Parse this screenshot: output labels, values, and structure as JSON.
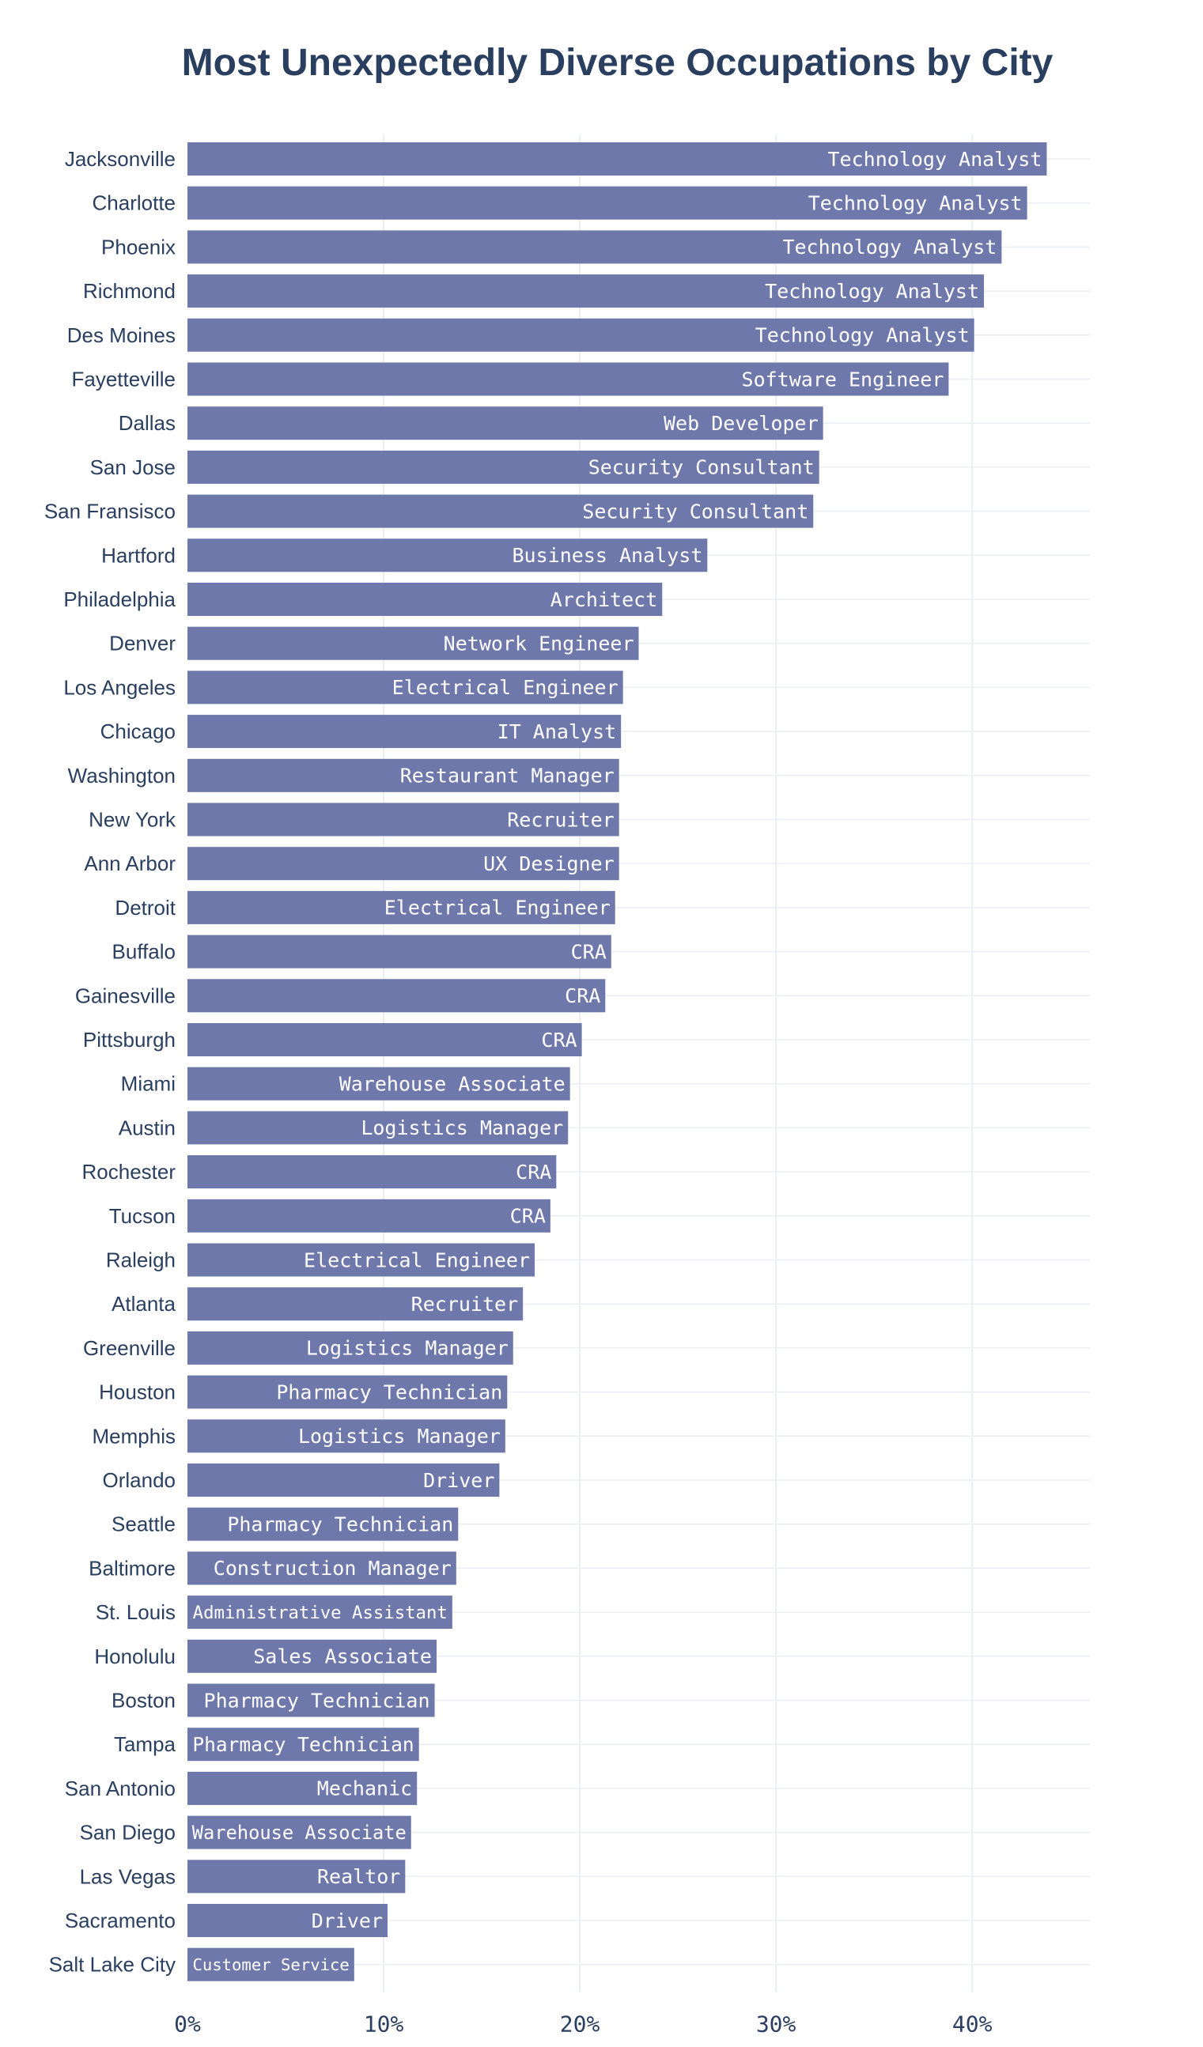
{
  "chart_data": {
    "type": "bar",
    "orientation": "horizontal",
    "title": "Most Unexpectedly Diverse Occupations by City",
    "xlabel": "",
    "ylabel": "",
    "xlim": [
      0,
      46
    ],
    "x_ticks": [
      0,
      10,
      20,
      30,
      40
    ],
    "x_tick_labels": [
      "0%",
      "10%",
      "20%",
      "30%",
      "40%"
    ],
    "grid": true,
    "bar_color": "#6e78aa",
    "categories": [
      "Jacksonville",
      "Charlotte",
      "Phoenix",
      "Richmond",
      "Des Moines",
      "Fayetteville",
      "Dallas",
      "San Jose",
      "San Fransisco",
      "Hartford",
      "Philadelphia",
      "Denver",
      "Los Angeles",
      "Chicago",
      "Washington",
      "New York",
      "Ann Arbor",
      "Detroit",
      "Buffalo",
      "Gainesville",
      "Pittsburgh",
      "Miami",
      "Austin",
      "Rochester",
      "Tucson",
      "Raleigh",
      "Atlanta",
      "Greenville",
      "Houston",
      "Memphis",
      "Orlando",
      "Seattle",
      "Baltimore",
      "St. Louis",
      "Honolulu",
      "Boston",
      "Tampa",
      "San Antonio",
      "San Diego",
      "Las Vegas",
      "Sacramento",
      "Salt Lake City"
    ],
    "values": [
      43.8,
      42.8,
      41.5,
      40.6,
      40.1,
      38.8,
      32.4,
      32.2,
      31.9,
      26.5,
      24.2,
      23.0,
      22.2,
      22.1,
      22.0,
      22.0,
      22.0,
      21.8,
      21.6,
      21.3,
      20.1,
      19.5,
      19.4,
      18.8,
      18.5,
      17.7,
      17.1,
      16.6,
      16.3,
      16.2,
      15.9,
      13.8,
      13.7,
      13.5,
      12.7,
      12.6,
      11.8,
      11.7,
      11.4,
      11.1,
      10.2,
      8.5
    ],
    "bar_labels": [
      "Technology Analyst",
      "Technology Analyst",
      "Technology Analyst",
      "Technology Analyst",
      "Technology Analyst",
      "Software Engineer",
      "Web Developer",
      "Security Consultant",
      "Security Consultant",
      "Business Analyst",
      "Architect",
      "Network Engineer",
      "Electrical Engineer",
      "IT Analyst",
      "Restaurant Manager",
      "Recruiter",
      "UX Designer",
      "Electrical Engineer",
      "CRA",
      "CRA",
      "CRA",
      "Warehouse Associate",
      "Logistics Manager",
      "CRA",
      "CRA",
      "Electrical Engineer",
      "Recruiter",
      "Logistics Manager",
      "Pharmacy Technician",
      "Logistics Manager",
      "Driver",
      "Pharmacy Technician",
      "Construction Manager",
      "Administrative Assistant",
      "Sales Associate",
      "Pharmacy Technician",
      "Pharmacy Technician",
      "Mechanic",
      "Warehouse Associate",
      "Realtor",
      "Driver",
      "Customer Service"
    ]
  }
}
